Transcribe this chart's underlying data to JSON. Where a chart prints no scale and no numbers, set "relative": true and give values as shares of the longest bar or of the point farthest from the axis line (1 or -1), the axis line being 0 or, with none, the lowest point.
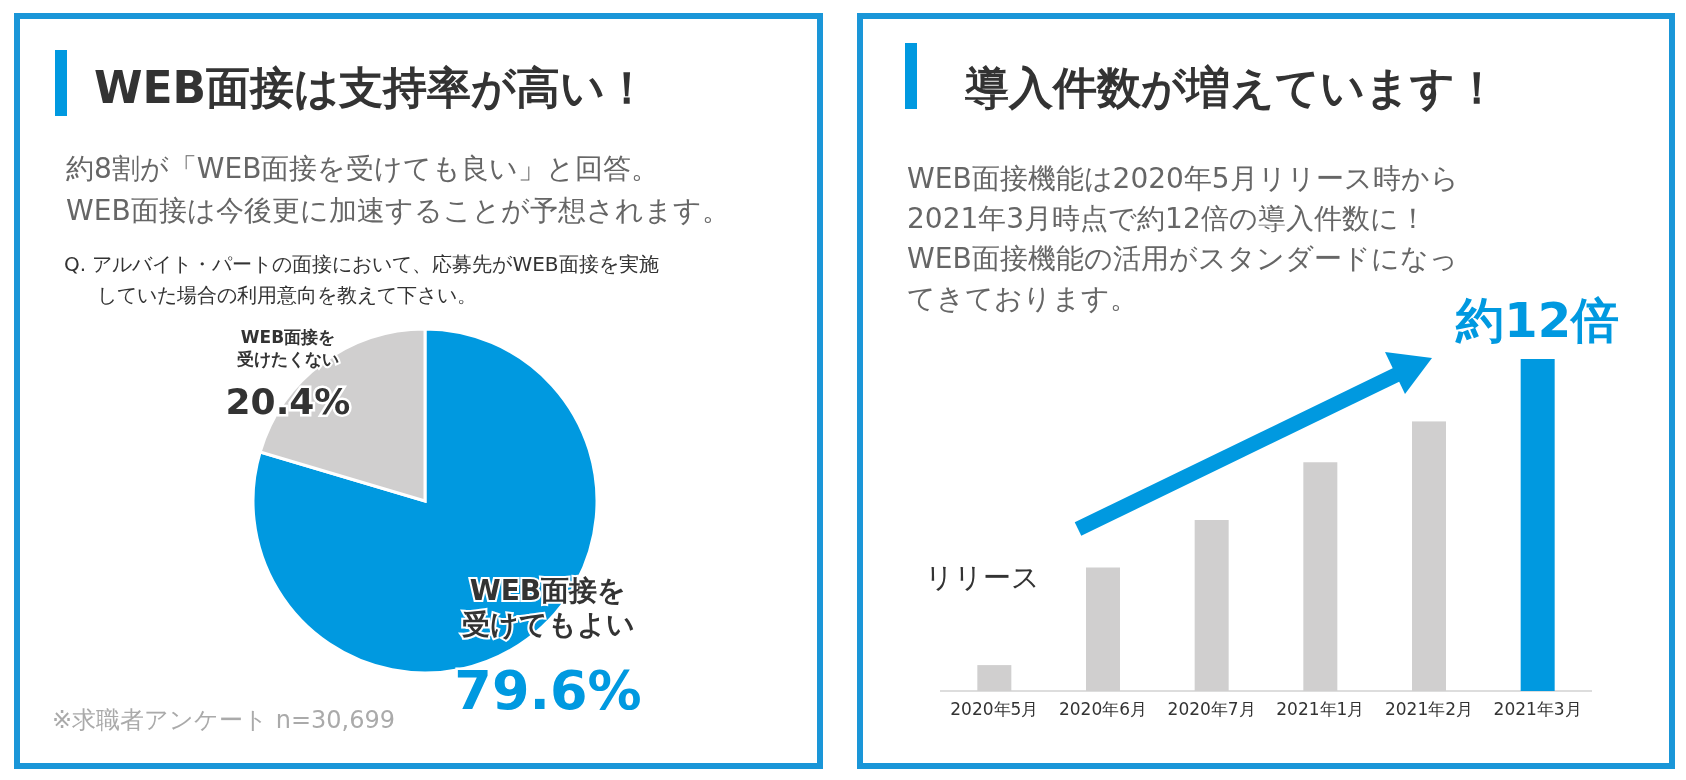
{
  "chart_data": [
    {
      "type": "pie",
      "title": "WEB面接は支持率が高い！",
      "subtitle": "約8割が「WEB面接を受けても良い」と回答。WEB面接は今後更に加速することが予想されます。",
      "categories": [
        "WEB面接を受けてもよい",
        "WEB面接を受けたくない"
      ],
      "values": [
        79.6,
        20.4
      ],
      "colors": [
        "#0099e0",
        "#d0cfcf"
      ],
      "value_labels": [
        "79.6%",
        "20.4%"
      ],
      "annotations": [
        "Q. アルバイト・パートの面接において、応募先がWEB面接を実施していた場合の利用意向を教えて下さい。",
        "※求職者アンケート n=30,699"
      ]
    },
    {
      "type": "bar",
      "relative": true,
      "title": "導入件数が増えています！",
      "subtitle": "WEB面接機能は2020年5月リリース時から2021年3月時点で約12倍の導入件数に！WEB面接機能の活用がスタンダードになってきております。",
      "categories": [
        "2020年5月",
        "2020年6月",
        "2020年7月",
        "2021年1月",
        "2021年2月",
        "2021年3月"
      ],
      "values": [
        0.078,
        0.372,
        0.515,
        0.689,
        0.812,
        1.0
      ],
      "colors": [
        "#d0cfcf",
        "#d0cfcf",
        "#d0cfcf",
        "#d0cfcf",
        "#d0cfcf",
        "#0099e0"
      ],
      "annotations": [
        "リリース",
        "約12倍"
      ]
    }
  ]
}
